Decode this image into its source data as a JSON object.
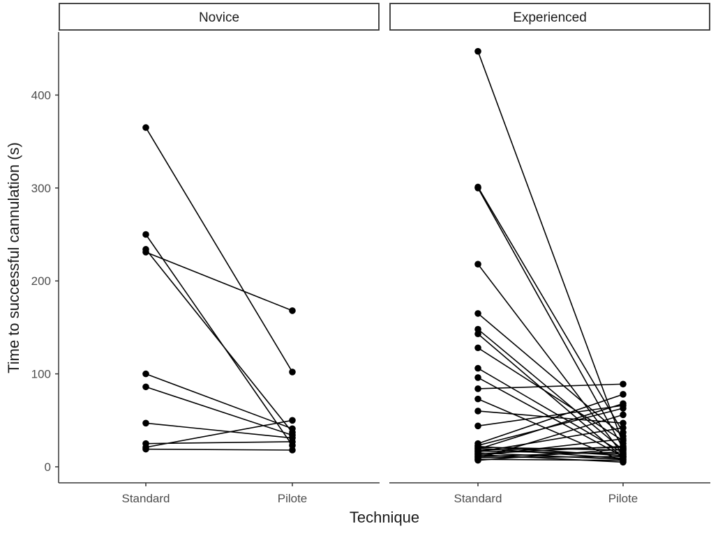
{
  "chart_data": {
    "type": "line",
    "xlabel": "Technique",
    "ylabel": "Time to successful cannulation (s)",
    "categories": [
      "Standard",
      "Pilote"
    ],
    "y_ticks": [
      0,
      100,
      200,
      300,
      400
    ],
    "ylim": [
      -18,
      470
    ],
    "grid": false,
    "legend": "none",
    "colors": {
      "line": "#000000",
      "point": "#000000",
      "axis": "#333333",
      "strip_fill": "#ffffff",
      "strip_border": "#333333"
    },
    "panels": [
      {
        "label": "Novice",
        "series": [
          {
            "values": [
              365,
              102
            ]
          },
          {
            "values": [
              250,
              23
            ]
          },
          {
            "values": [
              234,
              37
            ]
          },
          {
            "values": [
              231,
              168
            ]
          },
          {
            "values": [
              100,
              41
            ]
          },
          {
            "values": [
              86,
              34
            ]
          },
          {
            "values": [
              47,
              31
            ]
          },
          {
            "values": [
              25,
              27
            ]
          },
          {
            "values": [
              21,
              50
            ]
          },
          {
            "values": [
              19,
              18
            ]
          }
        ]
      },
      {
        "label": "Experienced",
        "series": [
          {
            "values": [
              447,
              25
            ]
          },
          {
            "values": [
              301,
              37
            ]
          },
          {
            "values": [
              300,
              20
            ]
          },
          {
            "values": [
              218,
              13
            ]
          },
          {
            "values": [
              165,
              33
            ]
          },
          {
            "values": [
              148,
              18
            ]
          },
          {
            "values": [
              143,
              10
            ]
          },
          {
            "values": [
              128,
              28
            ]
          },
          {
            "values": [
              106,
              15
            ]
          },
          {
            "values": [
              96,
              11
            ]
          },
          {
            "values": [
              84,
              89
            ]
          },
          {
            "values": [
              73,
              6
            ]
          },
          {
            "values": [
              60,
              47
            ]
          },
          {
            "values": [
              44,
              66
            ]
          },
          {
            "values": [
              25,
              78
            ]
          },
          {
            "values": [
              23,
              63
            ]
          },
          {
            "values": [
              22,
              12
            ]
          },
          {
            "values": [
              21,
              18
            ]
          },
          {
            "values": [
              20,
              9
            ]
          },
          {
            "values": [
              19,
              68
            ]
          },
          {
            "values": [
              18,
              21
            ]
          },
          {
            "values": [
              17,
              14
            ]
          },
          {
            "values": [
              16,
              42
            ]
          },
          {
            "values": [
              15,
              8
            ]
          },
          {
            "values": [
              14,
              22
            ]
          },
          {
            "values": [
              13,
              5
            ]
          },
          {
            "values": [
              12,
              30
            ]
          },
          {
            "values": [
              11,
              16
            ]
          },
          {
            "values": [
              10,
              11
            ]
          },
          {
            "values": [
              9,
              56
            ]
          },
          {
            "values": [
              8,
              7
            ]
          },
          {
            "values": [
              7,
              19
            ]
          }
        ]
      }
    ]
  }
}
